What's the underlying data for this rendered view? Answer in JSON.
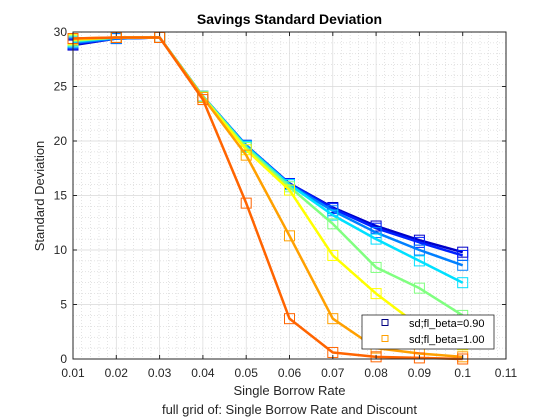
{
  "chart_data": {
    "type": "line",
    "title": "Savings Standard Deviation",
    "xlabel": "Single Borrow Rate",
    "subtitle": "full grid of: Single Borrow Rate and Discount",
    "ylabel": "Standard Deviation",
    "xlim": [
      0.01,
      0.11
    ],
    "ylim": [
      0,
      30
    ],
    "xticks": [
      "0.01",
      "0.02",
      "0.03",
      "0.04",
      "0.05",
      "0.06",
      "0.07",
      "0.08",
      "0.09",
      "0.1",
      "0.11"
    ],
    "yticks": [
      "0",
      "5",
      "10",
      "15",
      "20",
      "25",
      "30"
    ],
    "grid": true,
    "minor_grid": true,
    "x": [
      0.01,
      0.02,
      0.03,
      0.04,
      0.05,
      0.06,
      0.07,
      0.08,
      0.09,
      0.1
    ],
    "series": [
      {
        "color": "#0000c8",
        "values": [
          28.8,
          29.4,
          29.5,
          24.1,
          19.6,
          16.1,
          13.9,
          12.2,
          10.9,
          9.8
        ]
      },
      {
        "color": "#0020ff",
        "values": [
          28.9,
          29.4,
          29.5,
          24.1,
          19.6,
          16.1,
          13.8,
          12.0,
          10.7,
          9.5
        ]
      },
      {
        "color": "#0080ff",
        "values": [
          29.0,
          29.4,
          29.5,
          24.1,
          19.6,
          16.0,
          13.6,
          11.6,
          10.0,
          8.6
        ]
      },
      {
        "color": "#00e0ff",
        "values": [
          29.1,
          29.5,
          29.5,
          24.1,
          19.5,
          16.0,
          13.2,
          11.0,
          9.0,
          7.0
        ]
      },
      {
        "color": "#80ff80",
        "values": [
          29.2,
          29.5,
          29.5,
          24.1,
          19.4,
          15.8,
          12.4,
          8.4,
          6.5,
          4.0
        ]
      },
      {
        "color": "#ffff00",
        "values": [
          29.3,
          29.5,
          29.5,
          24.0,
          19.2,
          15.5,
          9.5,
          6.0,
          3.0,
          1.3
        ]
      },
      {
        "color": "#ffa000",
        "values": [
          29.4,
          29.5,
          29.5,
          24.0,
          18.7,
          11.3,
          3.7,
          1.0,
          0.5,
          0.2
        ]
      },
      {
        "color": "#ff6400",
        "values": [
          29.4,
          29.5,
          29.5,
          23.8,
          14.3,
          3.7,
          0.6,
          0.2,
          0.1,
          0.0
        ]
      }
    ],
    "legend": {
      "placement": "bottom-right",
      "entries": [
        {
          "label": "sd;fl_beta=0.90",
          "color": "#000080"
        },
        {
          "label": "sd;fl_beta=1.00",
          "color": "#ffa000"
        }
      ]
    }
  }
}
